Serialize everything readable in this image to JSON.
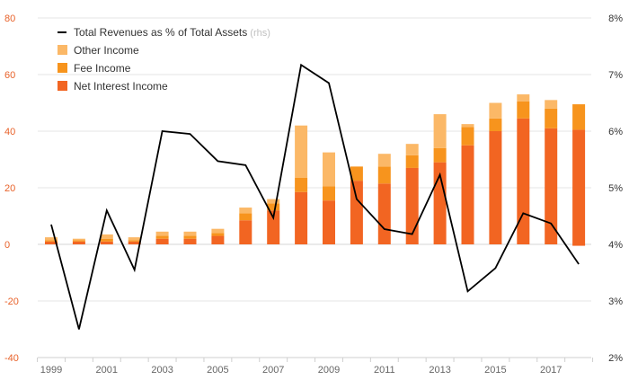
{
  "chart_data": {
    "type": "bar",
    "x": [
      1999,
      2000,
      2001,
      2002,
      2003,
      2004,
      2005,
      2006,
      2007,
      2008,
      2009,
      2010,
      2011,
      2012,
      2013,
      2014,
      2015,
      2016,
      2017,
      2018
    ],
    "x_tick_labels": [
      "1999",
      "2001",
      "2003",
      "2005",
      "2007",
      "2009",
      "2011",
      "2013",
      "2015",
      "2017"
    ],
    "series": [
      {
        "name": "Net Interest Income",
        "type": "bar",
        "stack": "income",
        "color": "#f26522",
        "values": [
          1,
          1,
          1,
          1,
          2,
          2,
          3,
          8.5,
          12,
          18.5,
          15.5,
          22.5,
          21.5,
          27,
          29,
          35,
          40,
          44.5,
          41,
          40.5
        ]
      },
      {
        "name": "Fee Income",
        "type": "bar",
        "stack": "income",
        "color": "#f7941d",
        "values": [
          0.5,
          0.5,
          1,
          0.5,
          1,
          1,
          1,
          2.5,
          2.5,
          5,
          5,
          5,
          6,
          4.5,
          5,
          6.5,
          4.5,
          6,
          7,
          9
        ]
      },
      {
        "name": "Other Income",
        "type": "bar",
        "stack": "income",
        "color": "#fbb867",
        "values": [
          1,
          0.5,
          1.5,
          1,
          1.5,
          1.5,
          1.5,
          2,
          1.5,
          18.5,
          12,
          0,
          4.5,
          4,
          12,
          1,
          5.5,
          2.5,
          3,
          0
        ]
      },
      {
        "name": "Total Revenues as % of Total Assets",
        "type": "line",
        "axis": "right",
        "color": "#000000",
        "values": [
          4.35,
          2.5,
          4.6,
          3.55,
          6.0,
          5.95,
          5.47,
          5.4,
          4.47,
          7.17,
          6.85,
          4.8,
          4.27,
          4.18,
          5.23,
          3.17,
          3.58,
          4.55,
          4.37,
          3.65
        ]
      }
    ],
    "extra_negatives": [
      {
        "x": 2018,
        "series": "Net Interest Income",
        "value": -0.5
      }
    ],
    "ylim_left": [
      -40,
      80
    ],
    "y_ticks_left": [
      "-40",
      "-20",
      "0",
      "20",
      "40",
      "60",
      "80"
    ],
    "ylim_right": [
      2,
      8
    ],
    "y_ticks_right": [
      "2%",
      "3%",
      "4%",
      "5%",
      "6%",
      "7%",
      "8%"
    ],
    "grid": true,
    "legend": {
      "position": "top-left",
      "entries": [
        {
          "label": "Total Revenues as % of Total Assets",
          "note": "(rhs)",
          "kind": "line",
          "color": "#000000"
        },
        {
          "label": "Other Income",
          "kind": "box",
          "color": "#fbb867"
        },
        {
          "label": "Fee Income",
          "kind": "box",
          "color": "#f7941d"
        },
        {
          "label": "Net Interest Income",
          "kind": "box",
          "color": "#f26522"
        }
      ]
    },
    "title": "",
    "xlabel": "",
    "ylabel": ""
  }
}
